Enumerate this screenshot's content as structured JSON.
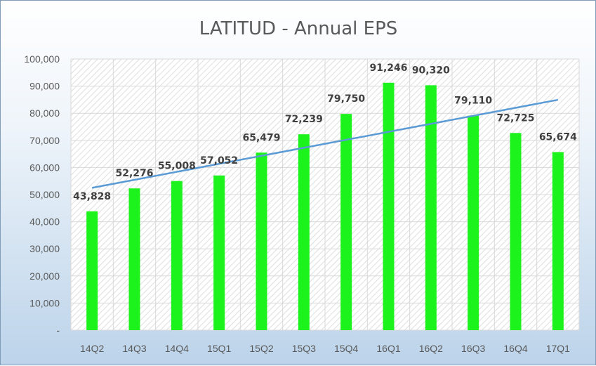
{
  "chart_data": {
    "type": "bar",
    "title": "LATITUD - Annual EPS",
    "categories": [
      "14Q2",
      "14Q3",
      "14Q4",
      "15Q1",
      "15Q2",
      "15Q3",
      "15Q4",
      "16Q1",
      "16Q2",
      "16Q3",
      "16Q4",
      "17Q1"
    ],
    "values": [
      43828,
      52276,
      55008,
      57052,
      65479,
      72239,
      79750,
      91246,
      90320,
      79110,
      72725,
      65674
    ],
    "value_labels": [
      "43,828",
      "52,276",
      "55,008",
      "57,052",
      "65,479",
      "72,239",
      "79,750",
      "91,246",
      "90,320",
      "79,110",
      "72,725",
      "65,674"
    ],
    "ylim": [
      0,
      100000
    ],
    "yticks": [
      0,
      10000,
      20000,
      30000,
      40000,
      50000,
      60000,
      70000,
      80000,
      90000,
      100000
    ],
    "ytick_labels": [
      "-",
      "10,000",
      "20,000",
      "30,000",
      "40,000",
      "50,000",
      "60,000",
      "70,000",
      "80,000",
      "90,000",
      "100,000"
    ],
    "trendline": {
      "type": "linear"
    },
    "grid": true,
    "xlabel": "",
    "ylabel": "",
    "colors": {
      "bar": "#1cf21c",
      "trendline": "#5b9bd5",
      "grid": "#d9d9d9"
    }
  }
}
